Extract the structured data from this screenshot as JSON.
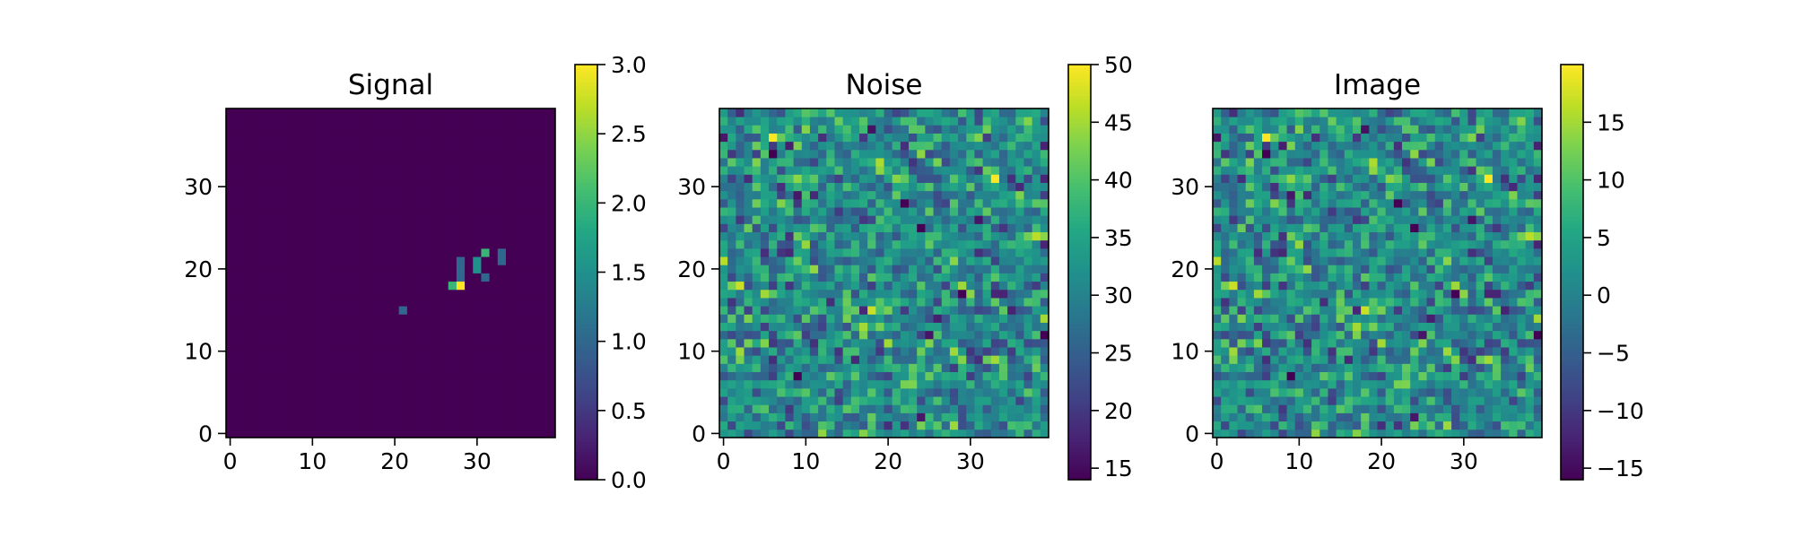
{
  "chart_data": [
    {
      "type": "heatmap",
      "title": "Signal",
      "colormap": "viridis",
      "size": 40,
      "x_ticks": [
        "0",
        "10",
        "20",
        "30"
      ],
      "y_ticks": [
        "0",
        "10",
        "20",
        "30"
      ],
      "colorbar": {
        "range": [
          0,
          3
        ],
        "ticks": [
          {
            "value": 0.0,
            "label": "0.0"
          },
          {
            "value": 0.5,
            "label": "0.5"
          },
          {
            "value": 1.0,
            "label": "1.0"
          },
          {
            "value": 1.5,
            "label": "1.5"
          },
          {
            "value": 2.0,
            "label": "2.0"
          },
          {
            "value": 2.5,
            "label": "2.5"
          },
          {
            "value": 3.0,
            "label": "3.0"
          }
        ]
      },
      "pixels": [
        {
          "x": 21,
          "y": 15,
          "value": 1.0
        },
        {
          "x": 27,
          "y": 18,
          "value": 2.0
        },
        {
          "x": 28,
          "y": 18,
          "value": 3.0
        },
        {
          "x": 28,
          "y": 19,
          "value": 1.0
        },
        {
          "x": 28,
          "y": 20,
          "value": 1.0
        },
        {
          "x": 28,
          "y": 21,
          "value": 1.0
        },
        {
          "x": 30,
          "y": 20,
          "value": 1.5
        },
        {
          "x": 30,
          "y": 21,
          "value": 1.5
        },
        {
          "x": 31,
          "y": 19,
          "value": 1.0
        },
        {
          "x": 31,
          "y": 22,
          "value": 2.0
        },
        {
          "x": 33,
          "y": 21,
          "value": 1.0
        },
        {
          "x": 33,
          "y": 22,
          "value": 1.0
        }
      ]
    },
    {
      "type": "heatmap",
      "title": "Noise",
      "colormap": "viridis",
      "size": 40,
      "x_ticks": [
        "0",
        "10",
        "20",
        "30"
      ],
      "y_ticks": [
        "0",
        "10",
        "20",
        "30"
      ],
      "colorbar": {
        "range": [
          14,
          50
        ],
        "ticks": [
          {
            "value": 15,
            "label": "15"
          },
          {
            "value": 20,
            "label": "20"
          },
          {
            "value": 25,
            "label": "25"
          },
          {
            "value": 30,
            "label": "30"
          },
          {
            "value": 35,
            "label": "35"
          },
          {
            "value": 40,
            "label": "40"
          },
          {
            "value": 45,
            "label": "45"
          },
          {
            "value": 50,
            "label": "50"
          }
        ]
      },
      "field": {
        "distribution": "random",
        "mean": 31,
        "std": 6,
        "seed": 17
      }
    },
    {
      "type": "heatmap",
      "title": "Image",
      "colormap": "viridis",
      "size": 40,
      "x_ticks": [
        "0",
        "10",
        "20",
        "30"
      ],
      "y_ticks": [
        "0",
        "10",
        "20",
        "30"
      ],
      "colorbar": {
        "range": [
          -16,
          20
        ],
        "ticks": [
          {
            "value": -15,
            "label": "−15"
          },
          {
            "value": -10,
            "label": "−10"
          },
          {
            "value": -5,
            "label": "−5"
          },
          {
            "value": 0,
            "label": "0"
          },
          {
            "value": 5,
            "label": "5"
          },
          {
            "value": 10,
            "label": "10"
          },
          {
            "value": 15,
            "label": "15"
          }
        ]
      },
      "field": {
        "distribution": "random",
        "mean": 1,
        "std": 6,
        "seed": 17
      }
    }
  ]
}
